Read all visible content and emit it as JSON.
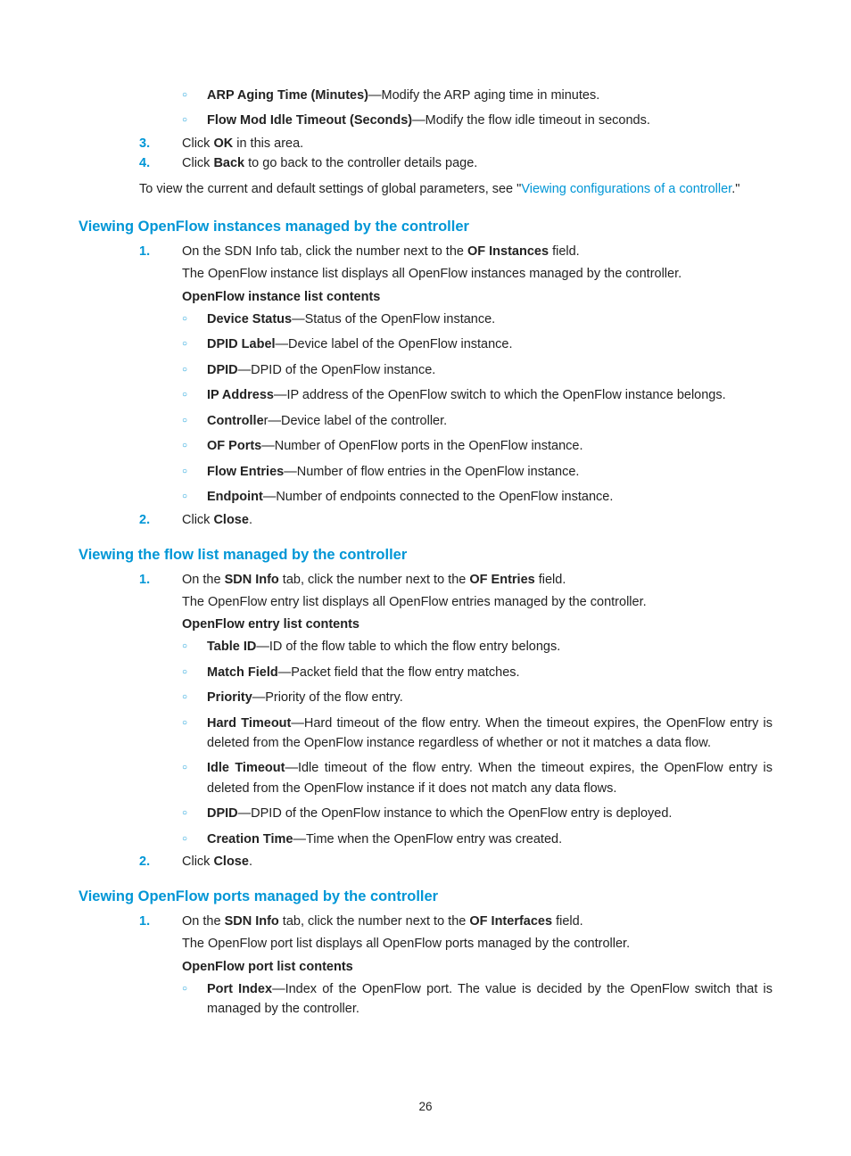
{
  "colors": {
    "accent": "#0096d6",
    "text": "#222222",
    "background": "#ffffff"
  },
  "typography": {
    "body_fontsize_pt": 11,
    "heading_fontsize_pt": 12.5,
    "font_family": "Arial"
  },
  "page_number": "26",
  "top_continued": {
    "items": [
      {
        "term": "ARP Aging Time (Minutes)",
        "desc": "—Modify the ARP aging time in minutes."
      },
      {
        "term": "Flow Mod Idle Timeout (Seconds)",
        "desc": "—Modify the flow idle timeout in seconds."
      }
    ],
    "step3": {
      "num": "3.",
      "pre": "Click ",
      "bold": "OK",
      "post": " in this area."
    },
    "step4": {
      "num": "4.",
      "pre": "Click ",
      "bold": "Back",
      "post": " to go back to the controller details page."
    },
    "trailing": {
      "pre": "To view the current and default settings of global parameters, see \"",
      "link": "Viewing configurations of a controller",
      "post": ".\""
    }
  },
  "section1": {
    "title": "Viewing OpenFlow instances managed by the controller",
    "step1": {
      "num": "1.",
      "pre": "On the SDN Info tab, click the number next to the ",
      "bold": "OF Instances",
      "post": " field."
    },
    "desc": "The OpenFlow instance list displays all OpenFlow instances managed by the controller.",
    "list_title": "OpenFlow instance list contents",
    "items": [
      {
        "term": "Device Status",
        "desc": "—Status of the OpenFlow instance."
      },
      {
        "term": "DPID Label",
        "desc": "—Device label of the OpenFlow instance."
      },
      {
        "term": "DPID",
        "desc": "—DPID of the OpenFlow instance."
      },
      {
        "term": "IP Address",
        "desc": "—IP address of the OpenFlow switch to which the OpenFlow instance belongs."
      },
      {
        "term": "Controlle",
        "term_tail": "r",
        "desc": "—Device label of the controller."
      },
      {
        "term": "OF Ports",
        "desc": "—Number of OpenFlow ports in the OpenFlow instance."
      },
      {
        "term": "Flow Entries",
        "desc": "—Number of flow entries in the OpenFlow instance."
      },
      {
        "term": "Endpoint",
        "desc": "—Number of endpoints connected to the OpenFlow instance."
      }
    ],
    "step2": {
      "num": "2.",
      "pre": "Click ",
      "bold": "Close",
      "post": "."
    }
  },
  "section2": {
    "title": "Viewing the flow list managed by the controller",
    "step1": {
      "num": "1.",
      "pre": "On the ",
      "bold1": "SDN Info",
      "mid": " tab, click the number next to the ",
      "bold2": "OF Entries",
      "post": " field."
    },
    "desc": "The OpenFlow entry list displays all OpenFlow entries managed by the controller.",
    "list_title": "OpenFlow entry list contents",
    "items": [
      {
        "term": "Table ID",
        "desc": "—ID of the flow table to which the flow entry belongs."
      },
      {
        "term": "Match Field",
        "desc": "—Packet field that the flow entry matches."
      },
      {
        "term": "Priority",
        "desc": "—Priority of the flow entry."
      },
      {
        "term": "Hard Timeout",
        "desc": "—Hard timeout of the flow entry. When the timeout expires, the OpenFlow entry is deleted from the OpenFlow instance regardless of whether or not it matches a data flow."
      },
      {
        "term": "Idle Timeout",
        "desc": "—Idle timeout of the flow entry. When the timeout expires, the OpenFlow entry is deleted from the OpenFlow instance if it does not match any data flows."
      },
      {
        "term": "DPID",
        "desc": "—DPID of the OpenFlow instance to which the OpenFlow entry is deployed."
      },
      {
        "term": "Creation Time",
        "desc": "—Time when the OpenFlow entry was created."
      }
    ],
    "step2": {
      "num": "2.",
      "pre": "Click ",
      "bold": "Close",
      "post": "."
    }
  },
  "section3": {
    "title": "Viewing OpenFlow ports managed by the controller",
    "step1": {
      "num": "1.",
      "pre": "On the ",
      "bold1": "SDN Info",
      "mid": " tab, click the number next to the ",
      "bold2": "OF Interfaces",
      "post": " field."
    },
    "desc": "The OpenFlow port list displays all OpenFlow ports managed by the controller.",
    "list_title": "OpenFlow port list contents",
    "items": [
      {
        "term": "Port Index",
        "desc": "—Index of the OpenFlow port. The value is decided by the OpenFlow switch that is managed by the controller."
      }
    ]
  }
}
